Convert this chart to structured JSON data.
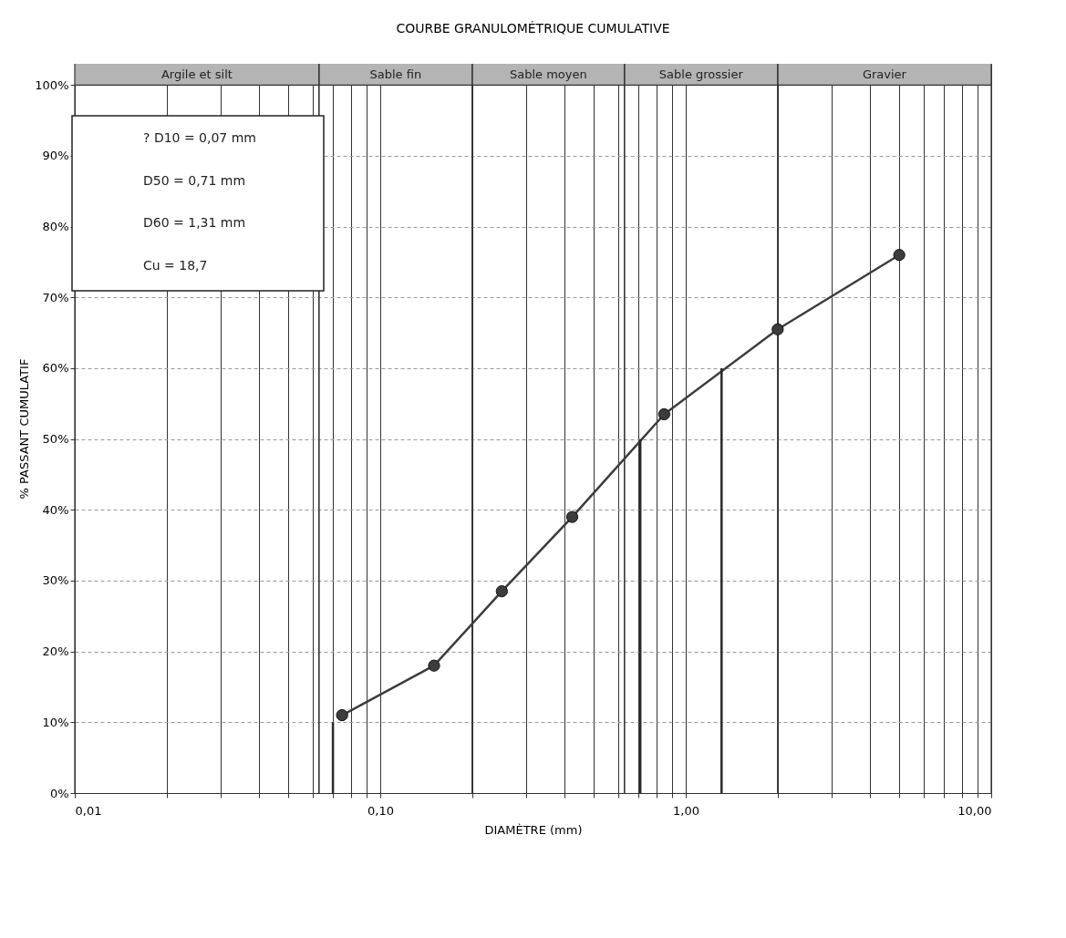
{
  "chart_data": {
    "type": "line",
    "title": "COURBE GRANULOMÉTRIQUE CUMULATIVE",
    "xlabel": "DIAMÈTRE (mm)",
    "ylabel": "% PASSANT CUMULATIF",
    "log": "x",
    "grid": true,
    "marker": "circle",
    "line_style": "solid",
    "xlim": [
      0.01,
      10
    ],
    "ylim": [
      0,
      103
    ],
    "xticks": [
      {
        "value": 0.01,
        "label": "0,01"
      },
      {
        "value": 0.02,
        "label": null
      },
      {
        "value": 0.03,
        "label": null
      },
      {
        "value": 0.04,
        "label": null
      },
      {
        "value": 0.05,
        "label": null
      },
      {
        "value": 0.06,
        "label": null
      },
      {
        "value": 0.07,
        "label": null
      },
      {
        "value": 0.08,
        "label": null
      },
      {
        "value": 0.09,
        "label": null
      },
      {
        "value": 0.1,
        "label": "0,10"
      },
      {
        "value": 0.2,
        "label": null
      },
      {
        "value": 0.3,
        "label": null
      },
      {
        "value": 0.4,
        "label": null
      },
      {
        "value": 0.5,
        "label": null
      },
      {
        "value": 0.6,
        "label": null
      },
      {
        "value": 0.7,
        "label": null
      },
      {
        "value": 0.8,
        "label": null
      },
      {
        "value": 0.9,
        "label": null
      },
      {
        "value": 1,
        "label": "1,00"
      },
      {
        "value": 2,
        "label": null
      },
      {
        "value": 3,
        "label": null
      },
      {
        "value": 4,
        "label": null
      },
      {
        "value": 5,
        "label": null
      },
      {
        "value": 6,
        "label": null
      },
      {
        "value": 7,
        "label": null
      },
      {
        "value": 8,
        "label": null
      },
      {
        "value": 9,
        "label": null
      },
      {
        "value": 10,
        "label": "10,00"
      }
    ],
    "yticks": [
      {
        "value": 0,
        "label": "0%"
      },
      {
        "value": 10,
        "label": "10%"
      },
      {
        "value": 20,
        "label": "20%"
      },
      {
        "value": 30,
        "label": "30%"
      },
      {
        "value": 40,
        "label": "40%"
      },
      {
        "value": 50,
        "label": "50%"
      },
      {
        "value": 60,
        "label": "60%"
      },
      {
        "value": 70,
        "label": "70%"
      },
      {
        "value": 80,
        "label": "80%"
      },
      {
        "value": 90,
        "label": "90%"
      },
      {
        "value": 100,
        "label": "100%"
      }
    ],
    "series": [
      {
        "color": "#3c3c3c",
        "x": [
          0.075,
          0.15,
          0.25,
          0.425,
          0.85,
          2,
          5
        ],
        "values": [
          11,
          18,
          28.5,
          39,
          53.5,
          65.5,
          76
        ]
      },
      {
        "color": "#2a2a2a",
        "marker": "none",
        "x": [
          0.07,
          0.07
        ],
        "values": [
          0,
          10
        ]
      },
      {
        "color": "#2a2a2a",
        "marker": "none",
        "x": [
          0.71,
          0.71
        ],
        "values": [
          0,
          50
        ]
      },
      {
        "color": "#2a2a2a",
        "marker": "none",
        "x": [
          1.31,
          1.31
        ],
        "values": [
          0,
          60
        ]
      }
    ],
    "bands": [
      {
        "axis": "x",
        "from": 0.01,
        "to": 0.063,
        "label": "Argile et silt",
        "color": "#b4b4b4"
      },
      {
        "axis": "x",
        "from": 0.063,
        "to": 0.2,
        "label": "Sable fin",
        "color": "#b4b4b4"
      },
      {
        "axis": "x",
        "from": 0.2,
        "to": 0.63,
        "label": "Sable moyen",
        "color": "#b4b4b4"
      },
      {
        "axis": "x",
        "from": 0.63,
        "to": 2,
        "label": "Sable grossier",
        "color": "#b4b4b4"
      },
      {
        "axis": "x",
        "from": 2,
        "to": 10,
        "label": "Gravier",
        "color": "#b4b4b4"
      }
    ],
    "annotations": [
      "? D10 = 0,07 mm",
      "D50 = 0,71 mm",
      "D60 = 1,31 mm",
      "Cu = 18,7"
    ]
  }
}
